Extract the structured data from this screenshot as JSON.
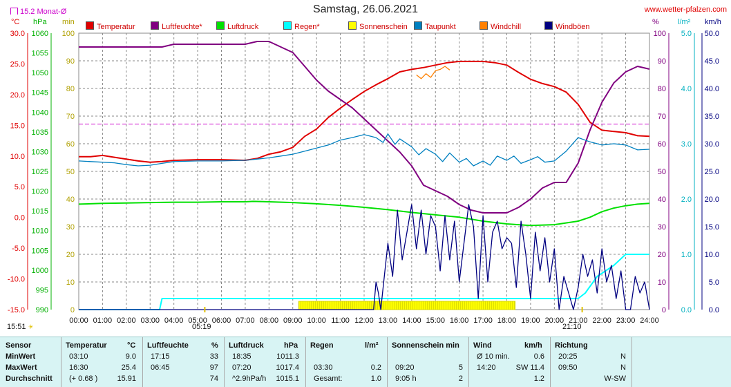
{
  "page": {
    "title": "Samstag, 26.06.2021",
    "site": "www.wetter-pfalzen.com",
    "monthly_avg_label": "15.2 Monat-Ø",
    "sunrise": "05:19",
    "sunset": "21:10",
    "current_time": "15:51"
  },
  "units": {
    "temp": "°C",
    "hpa": "hPa",
    "min": "min",
    "pct": "%",
    "rain": "l/m²",
    "wind": "km/h"
  },
  "legend": [
    {
      "label": "Temperatur",
      "color": "#e00000"
    },
    {
      "label": "Luftfeuchte*",
      "color": "#800080"
    },
    {
      "label": "Luftdruck",
      "color": "#00e000"
    },
    {
      "label": "Regen*",
      "color": "#00ffff"
    },
    {
      "label": "Sonnenschein",
      "color": "#ffff00"
    },
    {
      "label": "Taupunkt",
      "color": "#0080c0"
    },
    {
      "label": "Windchill",
      "color": "#ff8000"
    },
    {
      "label": "Windböen",
      "color": "#000080"
    }
  ],
  "axes": {
    "temp": [
      "30.0",
      "25.0",
      "20.0",
      "15.0",
      "10.0",
      "5.0",
      "0.0",
      "-5.0",
      "-10.0",
      "-15.0"
    ],
    "hpa": [
      "1060",
      "1055",
      "1050",
      "1045",
      "1040",
      "1035",
      "1030",
      "1025",
      "1020",
      "1015",
      "1010",
      "1005",
      "1000",
      "995",
      "990"
    ],
    "min": [
      "100",
      "90",
      "80",
      "70",
      "60",
      "50",
      "40",
      "30",
      "20",
      "10",
      "0"
    ],
    "pct": [
      "100",
      "90",
      "80",
      "70",
      "60",
      "50",
      "40",
      "30",
      "20",
      "10",
      "0"
    ],
    "rain": [
      "5.0",
      "4.0",
      "3.0",
      "2.0",
      "1.0",
      "0.0"
    ],
    "wind": [
      "50.0",
      "45.0",
      "40.0",
      "35.0",
      "30.0",
      "25.0",
      "20.0",
      "15.0",
      "10.0",
      "5.0",
      "0.0"
    ],
    "x": [
      "00:00",
      "01:00",
      "02:00",
      "03:00",
      "04:00",
      "05:00",
      "06:00",
      "07:00",
      "08:00",
      "09:00",
      "10:00",
      "11:00",
      "12:00",
      "13:00",
      "14:00",
      "15:00",
      "16:00",
      "17:00",
      "18:00",
      "19:00",
      "20:00",
      "21:00",
      "22:00",
      "23:00",
      "24:00"
    ]
  },
  "chart_data": {
    "type": "line",
    "title": "Samstag, 26.06.2021",
    "x_range": [
      0,
      24
    ],
    "monthly_avg_temp": 15.2,
    "temp_range": [
      -15,
      30
    ],
    "hpa_range": [
      990,
      1060
    ],
    "pct_range": [
      0,
      100
    ],
    "rain_range": [
      0,
      5
    ],
    "wind_range": [
      0,
      50
    ],
    "series": [
      {
        "name": "Temperatur",
        "axis": "temp",
        "color": "#e00000",
        "x": [
          0,
          0.5,
          1,
          1.5,
          2,
          2.5,
          3,
          3.5,
          4,
          5,
          6,
          7,
          7.5,
          8,
          8.5,
          9,
          9.5,
          10,
          10.5,
          11,
          11.5,
          12,
          12.5,
          13,
          13.5,
          14,
          14.5,
          15,
          15.5,
          16,
          16.5,
          17,
          17.5,
          18,
          18.5,
          19,
          19.5,
          20,
          20.5,
          21,
          21.5,
          22,
          22.5,
          23,
          23.5,
          24
        ],
        "y": [
          9.9,
          9.9,
          10.1,
          9.8,
          9.5,
          9.2,
          9.0,
          9.1,
          9.3,
          9.4,
          9.4,
          9.3,
          9.6,
          10.3,
          10.7,
          11.4,
          13.2,
          14.4,
          16.3,
          17.8,
          19.2,
          20.5,
          21.6,
          22.6,
          23.7,
          24.1,
          24.4,
          24.8,
          25.2,
          25.4,
          25.4,
          25.4,
          25.2,
          24.8,
          23.6,
          22.5,
          21.8,
          21.3,
          20.4,
          18.4,
          15.5,
          14.2,
          14.0,
          13.8,
          13.3,
          13.2
        ]
      },
      {
        "name": "Luftfeuchte*",
        "axis": "pct",
        "color": "#800080",
        "x": [
          0,
          1,
          2,
          3,
          3.5,
          4,
          5,
          6,
          7,
          7.5,
          8,
          8.5,
          9,
          9.5,
          10,
          10.5,
          11,
          11.5,
          12,
          12.5,
          13,
          13.5,
          14,
          14.5,
          15,
          15.5,
          16,
          16.5,
          17,
          17.5,
          18,
          18.5,
          19,
          19.5,
          20,
          20.5,
          21,
          21.5,
          22,
          22.5,
          23,
          23.5,
          24
        ],
        "y": [
          95,
          95,
          95,
          95,
          95,
          96,
          96,
          96,
          96,
          97,
          97,
          95,
          93,
          88,
          83,
          79,
          76,
          73,
          69,
          65,
          61,
          57,
          52,
          45,
          43,
          41,
          38,
          36,
          35,
          35,
          35,
          37,
          40,
          44,
          46,
          46,
          53,
          65,
          75,
          82,
          86,
          88,
          87
        ]
      },
      {
        "name": "Luftdruck",
        "axis": "hpa",
        "color": "#00e000",
        "x": [
          0,
          1,
          2,
          3,
          4,
          5,
          6,
          7,
          7.33,
          8,
          9,
          10,
          11,
          12,
          13,
          14,
          15,
          16,
          17,
          18,
          19,
          20,
          21,
          21.5,
          22,
          22.5,
          23,
          23.5,
          24
        ],
        "y": [
          1016.7,
          1016.9,
          1017.0,
          1017.1,
          1017.2,
          1017.2,
          1017.3,
          1017.3,
          1017.4,
          1017.3,
          1017.1,
          1016.8,
          1016.4,
          1015.9,
          1015.3,
          1014.6,
          1014.0,
          1013.4,
          1012.4,
          1011.7,
          1011.3,
          1011.5,
          1012.4,
          1013.4,
          1014.8,
          1015.7,
          1016.3,
          1016.7,
          1016.9
        ]
      },
      {
        "name": "Regen*",
        "axis": "rain",
        "color": "#00ffff",
        "x": [
          0,
          3.4,
          3.5,
          4,
          4.5,
          5,
          6,
          7,
          8,
          9,
          10,
          11,
          12,
          13,
          14,
          15,
          16,
          17,
          18,
          19,
          20,
          21,
          21.3,
          21.8,
          22.5,
          23,
          23.5,
          24
        ],
        "y": [
          0,
          0,
          0.2,
          0.2,
          0.2,
          0.2,
          0.2,
          0.2,
          0.2,
          0.2,
          0.2,
          0.2,
          0.2,
          0.2,
          0.2,
          0.2,
          0.2,
          0.2,
          0.2,
          0.2,
          0.2,
          0.2,
          0.3,
          0.6,
          0.8,
          1.0,
          1.0,
          1.0
        ]
      },
      {
        "name": "Taupunkt",
        "axis": "temp",
        "color": "#0080c0",
        "x": [
          0,
          0.5,
          1,
          1.5,
          2,
          2.5,
          3,
          3.5,
          4,
          5,
          6,
          7,
          7.5,
          8,
          8.5,
          9,
          9.5,
          10,
          10.5,
          11,
          11.5,
          12,
          12.5,
          12.8,
          13,
          13.3,
          13.5,
          14,
          14.3,
          14.6,
          15,
          15.3,
          15.6,
          16,
          16.3,
          16.6,
          17,
          17.3,
          17.6,
          18,
          18.3,
          18.6,
          19,
          19.3,
          19.6,
          20,
          20.5,
          21,
          21.5,
          22,
          22.5,
          23,
          23.5,
          24
        ],
        "y": [
          9.2,
          9.1,
          9.0,
          8.9,
          8.6,
          8.4,
          8.5,
          8.8,
          9.1,
          9.2,
          9.2,
          9.3,
          9.5,
          9.7,
          10.0,
          10.3,
          10.8,
          11.3,
          11.8,
          12.6,
          13.0,
          13.5,
          13.0,
          12.2,
          13.6,
          11.9,
          12.8,
          11.5,
          10.2,
          11.2,
          10.3,
          9.1,
          10.5,
          9.0,
          9.6,
          8.4,
          9.2,
          8.5,
          10.0,
          9.3,
          10.0,
          8.8,
          9.4,
          9.9,
          9.0,
          9.2,
          10.8,
          13.0,
          12.3,
          11.8,
          12.0,
          11.8,
          11.0,
          11.1
        ]
      },
      {
        "name": "Windchill",
        "axis": "temp",
        "color": "#ff8000",
        "x": [
          14.2,
          14.4,
          14.6,
          14.8,
          15.0,
          15.2,
          15.4,
          15.6
        ],
        "y": [
          23.2,
          22.6,
          23.4,
          22.8,
          23.9,
          24.1,
          24.6,
          24.0
        ]
      },
      {
        "name": "Windböen",
        "axis": "wind",
        "color": "#000080",
        "x": [
          0,
          12.4,
          12.5,
          12.6,
          12.7,
          12.8,
          13.0,
          13.2,
          13.4,
          13.6,
          13.8,
          14.0,
          14.2,
          14.4,
          14.6,
          14.8,
          15.0,
          15.2,
          15.4,
          15.6,
          15.8,
          16.0,
          16.2,
          16.4,
          16.6,
          16.8,
          17.0,
          17.2,
          17.4,
          17.6,
          17.8,
          18.0,
          18.2,
          18.4,
          18.6,
          18.8,
          19.0,
          19.2,
          19.4,
          19.6,
          19.8,
          20.0,
          20.2,
          20.4,
          20.6,
          20.8,
          21.0,
          21.2,
          21.4,
          21.6,
          21.8,
          22.0,
          22.2,
          22.4,
          22.6,
          22.8,
          23.0,
          23.2,
          23.4,
          23.6,
          23.8,
          24.0
        ],
        "y": [
          0,
          0,
          5,
          3,
          0,
          4,
          12,
          6,
          18,
          9,
          14,
          19,
          11,
          18,
          10,
          17,
          15,
          7,
          17,
          9,
          16,
          5,
          12,
          19,
          15,
          2,
          17,
          5,
          14,
          16,
          11,
          13,
          12,
          4,
          16,
          10,
          2,
          14,
          7,
          13,
          5,
          11,
          0,
          6,
          3,
          0,
          4,
          10,
          6,
          9,
          3,
          11,
          5,
          8,
          2,
          7,
          0,
          0,
          6,
          3,
          5,
          0
        ]
      }
    ],
    "sunshine": {
      "start": 9.25,
      "end": 18.35,
      "level_min": 3.0
    }
  },
  "table": {
    "headers": {
      "sensor": "Sensor",
      "temp": "Temperatur",
      "temp_unit": "°C",
      "hum": "Luftfeuchte",
      "hum_unit": "%",
      "press": "Luftdruck",
      "press_unit": "hPa",
      "rain": "Regen",
      "rain_unit": "l/m²",
      "sun": "Sonnenschein min",
      "wind": "Wind",
      "wind_unit": "km/h",
      "dir": "Richtung"
    },
    "rows": [
      {
        "label": "MinWert",
        "t_time": "03:10",
        "t_val": "9.0",
        "h_time": "17:15",
        "h_val": "33",
        "p_time": "18:35",
        "p_val": "1011.3",
        "r_time": "",
        "r_val": "",
        "s_time": "",
        "s_val": "",
        "w_time": "Ø 10 min.",
        "w_val": "0.6",
        "d_time": "20:25",
        "d_val": "N"
      },
      {
        "label": "MaxWert",
        "t_time": "16:30",
        "t_val": "25.4",
        "h_time": "06:45",
        "h_val": "97",
        "p_time": "07:20",
        "p_val": "1017.4",
        "r_time": "03:30",
        "r_val": "0.2",
        "s_time": "09:20",
        "s_val": "5",
        "w_time": "14:20",
        "w_val": "SW 11.4",
        "d_time": "09:50",
        "d_val": "N"
      },
      {
        "label": "Durchschnitt",
        "t_time": "(+ 0.68 )",
        "t_val": "15.91",
        "h_time": "",
        "h_val": "74",
        "p_time": "^2.9hPa/h",
        "p_val": "1015.1",
        "r_time": "Gesamt:",
        "r_val": "1.0",
        "s_time": "9:05 h",
        "s_val": "2",
        "w_time": "",
        "w_val": "1.2",
        "d_time": "",
        "d_val": "W-SW"
      }
    ]
  }
}
